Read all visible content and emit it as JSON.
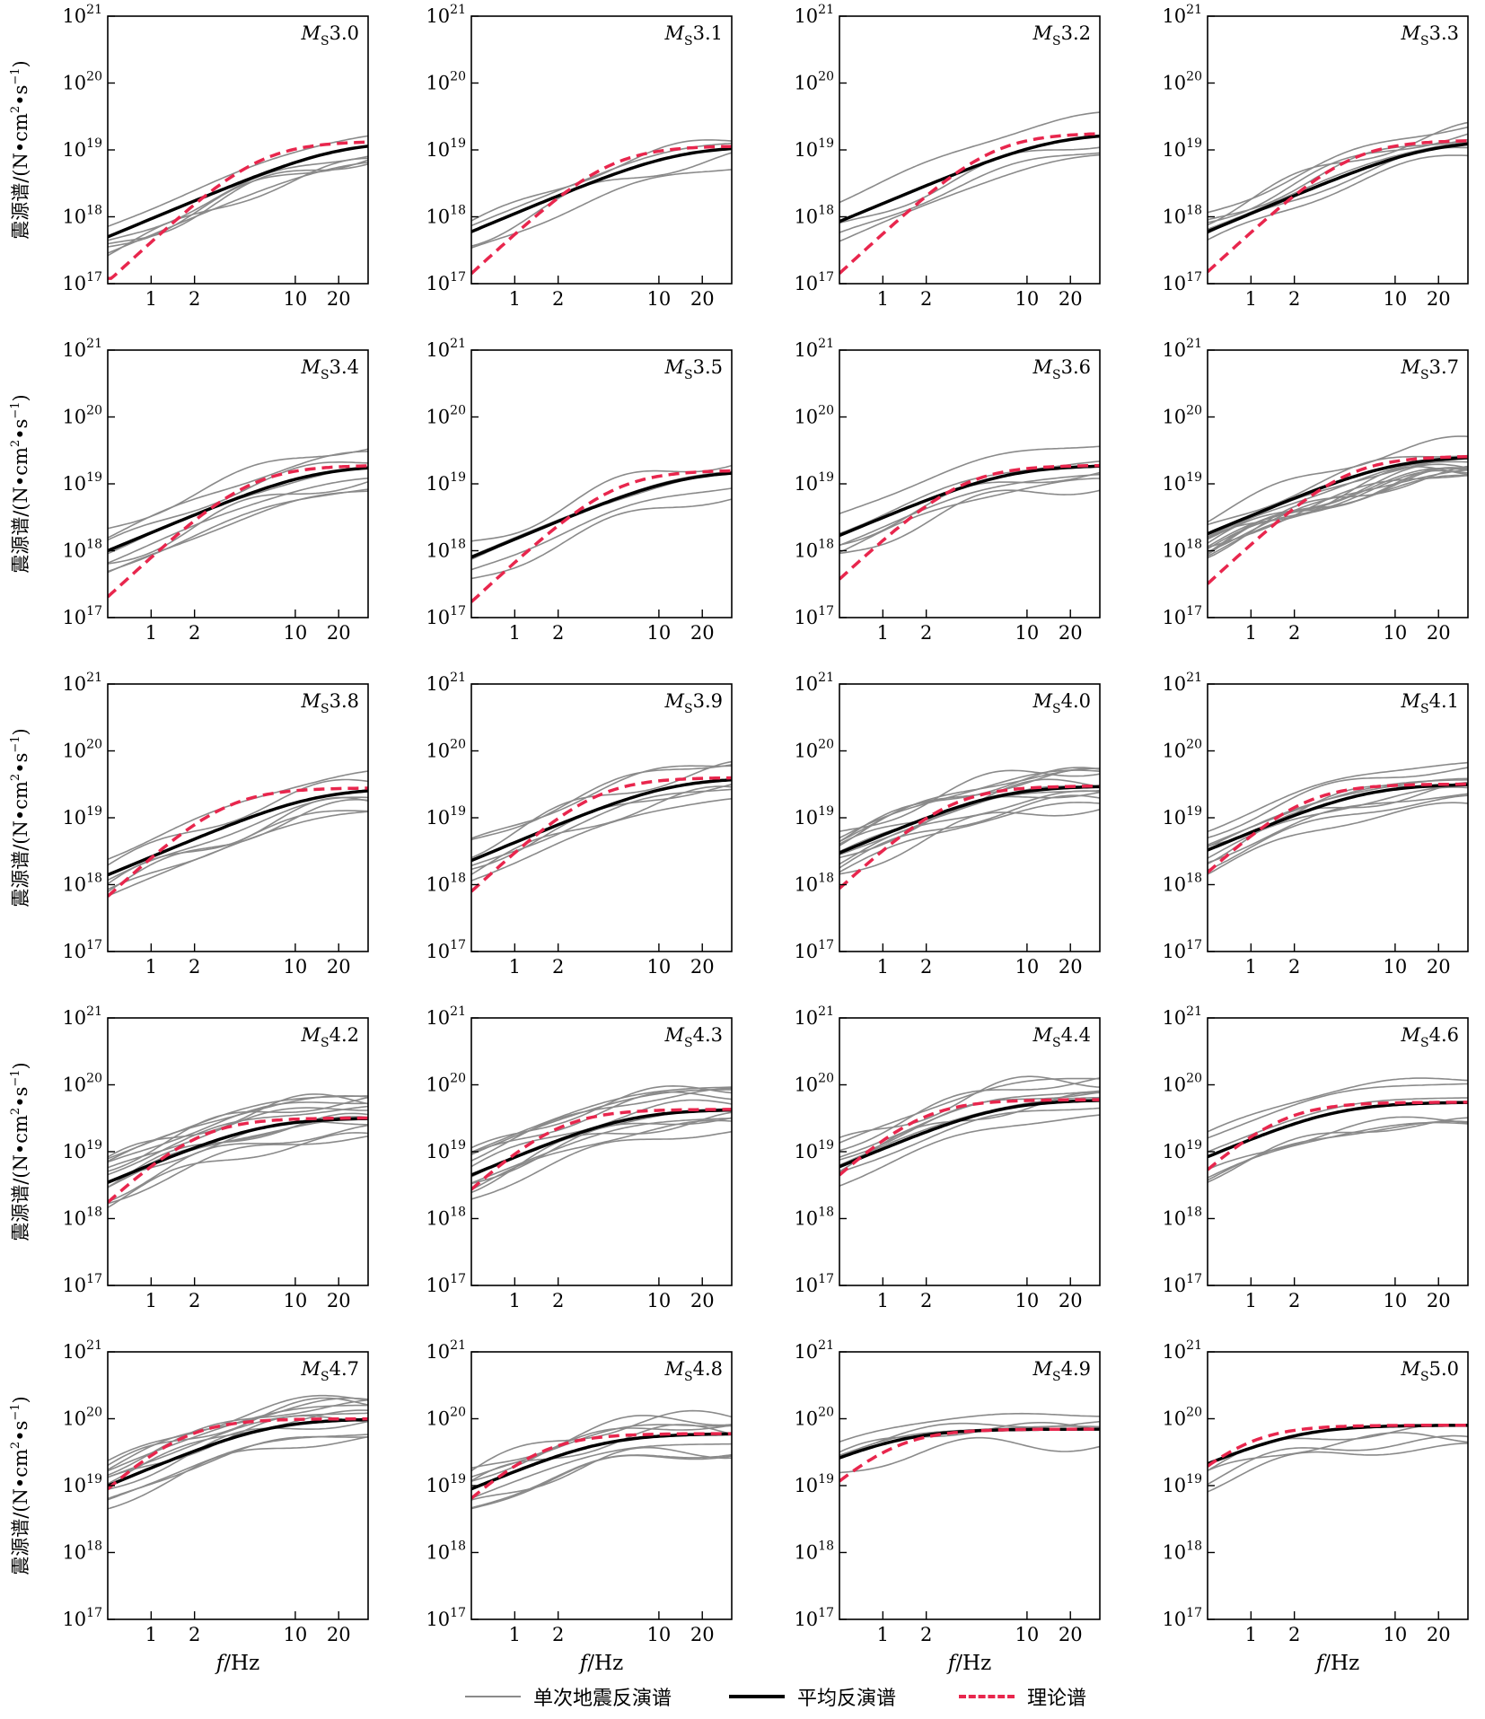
{
  "chart_data": {
    "type": "line",
    "layout": {
      "rows": 5,
      "cols": 4
    },
    "x_scale": "log",
    "y_scale": "log",
    "xlim": [
      0.5,
      32
    ],
    "ylim": [
      1e+17,
      1e+21
    ],
    "x_ticks": [
      {
        "value": 1,
        "label": "1"
      },
      {
        "value": 2,
        "label": "2"
      },
      {
        "value": 10,
        "label": "10"
      },
      {
        "value": 20,
        "label": "20"
      }
    ],
    "y_tick_labels": {
      "e17": {
        "base": "10",
        "exp": "17"
      },
      "e18": {
        "base": "10",
        "exp": "18"
      },
      "e19": {
        "base": "10",
        "exp": "19"
      },
      "e20": {
        "base": "10",
        "exp": "20"
      },
      "e21": {
        "base": "10",
        "exp": "21"
      }
    },
    "y_label": {
      "main": "震源谱/",
      "open": "(N•cm",
      "sup": "2",
      "mid": "•s",
      "sup2": "−1",
      "close": ")"
    },
    "x_label": {
      "italic": "f",
      "rest": "/Hz"
    },
    "legend": {
      "individual": "单次地震反演谱",
      "mean": "平均反演谱",
      "theory": "理论谱"
    },
    "colors": {
      "individual": "#8a8a8a",
      "mean": "#000000",
      "theory": "#e8264d"
    },
    "panels": [
      {
        "mag": "3.0",
        "omega0": 1.35e+19,
        "fc": 3.5,
        "low": 5e+17,
        "n": 6
      },
      {
        "mag": "3.1",
        "omega0": 1.15e+19,
        "fc": 2.8,
        "low": 6e+17,
        "n": 4
      },
      {
        "mag": "3.2",
        "omega0": 1.8e+19,
        "fc": 3.5,
        "low": 8.5e+17,
        "n": 4
      },
      {
        "mag": "3.3",
        "omega0": 1.4e+19,
        "fc": 3.0,
        "low": 6e+17,
        "n": 7
      },
      {
        "mag": "3.4",
        "omega0": 1.9e+19,
        "fc": 3.0,
        "low": 1e+18,
        "n": 8
      },
      {
        "mag": "3.5",
        "omega0": 1.6e+19,
        "fc": 3.0,
        "low": 8e+17,
        "n": 6
      },
      {
        "mag": "3.6",
        "omega0": 1.9e+19,
        "fc": 2.2,
        "low": 1.7e+18,
        "n": 6
      },
      {
        "mag": "3.7",
        "omega0": 2.6e+19,
        "fc": 2.8,
        "low": 1.8e+18,
        "n": 14
      },
      {
        "mag": "3.8",
        "omega0": 2.8e+19,
        "fc": 2.0,
        "low": 1.4e+18,
        "n": 7
      },
      {
        "mag": "3.9",
        "omega0": 4e+19,
        "fc": 2.2,
        "low": 2.3e+18,
        "n": 7
      },
      {
        "mag": "4.0",
        "omega0": 3e+19,
        "fc": 1.8,
        "low": 3e+18,
        "n": 13
      },
      {
        "mag": "4.1",
        "omega0": 3.2e+19,
        "fc": 1.4,
        "low": 3.3e+18,
        "n": 10
      },
      {
        "mag": "4.2",
        "omega0": 3.2e+19,
        "fc": 1.3,
        "low": 3.5e+18,
        "n": 14
      },
      {
        "mag": "4.3",
        "omega0": 4.3e+19,
        "fc": 1.2,
        "low": 4.5e+18,
        "n": 12
      },
      {
        "mag": "4.4",
        "omega0": 6e+19,
        "fc": 1.1,
        "low": 6e+18,
        "n": 9
      },
      {
        "mag": "4.6",
        "omega0": 5.5e+19,
        "fc": 0.95,
        "low": 8.5e+18,
        "n": 7
      },
      {
        "mag": "4.7",
        "omega0": 1e+20,
        "fc": 1.0,
        "low": 1e+19,
        "n": 12
      },
      {
        "mag": "4.8",
        "omega0": 6e+19,
        "fc": 0.9,
        "low": 9e+18,
        "n": 9
      },
      {
        "mag": "4.9",
        "omega0": 7e+19,
        "fc": 0.7,
        "low": 2.8e+19,
        "n": 5
      },
      {
        "mag": "5.0",
        "omega0": 8e+19,
        "fc": 0.55,
        "low": 2.2e+19,
        "n": 4
      }
    ]
  }
}
